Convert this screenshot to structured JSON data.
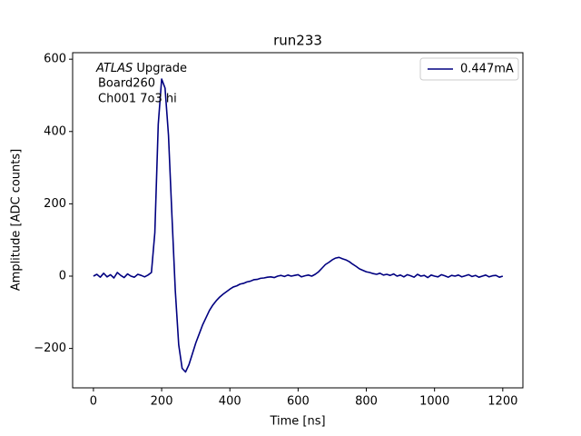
{
  "chart_data": {
    "type": "line",
    "title": "run233",
    "xlabel": "Time [ns]",
    "ylabel": "Amplitude [ADC counts]",
    "annotation": {
      "italic": "ATLAS",
      "text": "Upgrade",
      "lines": [
        "Board260",
        "Ch001 7o3 hi"
      ]
    },
    "x": [
      0,
      10,
      20,
      30,
      40,
      50,
      60,
      70,
      80,
      90,
      100,
      110,
      120,
      130,
      140,
      150,
      160,
      170,
      180,
      190,
      200,
      210,
      220,
      230,
      240,
      250,
      260,
      270,
      280,
      290,
      300,
      310,
      320,
      330,
      340,
      350,
      360,
      370,
      380,
      390,
      400,
      410,
      420,
      430,
      440,
      450,
      460,
      470,
      480,
      490,
      500,
      510,
      520,
      530,
      540,
      550,
      560,
      570,
      580,
      590,
      600,
      610,
      620,
      630,
      640,
      650,
      660,
      670,
      680,
      690,
      700,
      710,
      720,
      730,
      740,
      750,
      760,
      770,
      780,
      790,
      800,
      810,
      820,
      830,
      840,
      850,
      860,
      870,
      880,
      890,
      900,
      910,
      920,
      930,
      940,
      950,
      960,
      970,
      980,
      990,
      1000,
      1010,
      1020,
      1030,
      1040,
      1050,
      1060,
      1070,
      1080,
      1090,
      1100,
      1110,
      1120,
      1130,
      1140,
      1150,
      1160,
      1170,
      1180,
      1190,
      1200
    ],
    "series": [
      {
        "name": "0.447mA",
        "color": "#000080",
        "values": [
          0,
          5,
          -3,
          8,
          -2,
          4,
          -5,
          10,
          2,
          -4,
          6,
          0,
          -3,
          5,
          2,
          -2,
          3,
          10,
          120,
          420,
          545,
          520,
          390,
          170,
          -40,
          -190,
          -255,
          -265,
          -245,
          -215,
          -185,
          -160,
          -135,
          -115,
          -95,
          -80,
          -68,
          -58,
          -50,
          -43,
          -36,
          -30,
          -27,
          -22,
          -20,
          -16,
          -14,
          -10,
          -9,
          -6,
          -5,
          -3,
          -2,
          -4,
          0,
          2,
          -1,
          3,
          0,
          2,
          4,
          -2,
          1,
          3,
          0,
          5,
          12,
          22,
          32,
          38,
          45,
          50,
          52,
          48,
          45,
          40,
          33,
          27,
          20,
          16,
          12,
          10,
          7,
          5,
          8,
          3,
          5,
          2,
          6,
          0,
          3,
          -2,
          4,
          1,
          -3,
          5,
          0,
          2,
          -4,
          3,
          0,
          -2,
          4,
          1,
          -3,
          2,
          0,
          3,
          -2,
          1,
          4,
          -1,
          2,
          -3,
          0,
          3,
          -2,
          1,
          2,
          -3,
          0
        ]
      }
    ],
    "xlim": [
      -61,
      1259
    ],
    "ylim": [
      -309,
      618
    ],
    "xticks": [
      0,
      200,
      400,
      600,
      800,
      1000,
      1200
    ],
    "yticks": [
      {
        "value": -200,
        "label": "−200"
      },
      0,
      200,
      400,
      600
    ],
    "legend": "upper right"
  }
}
